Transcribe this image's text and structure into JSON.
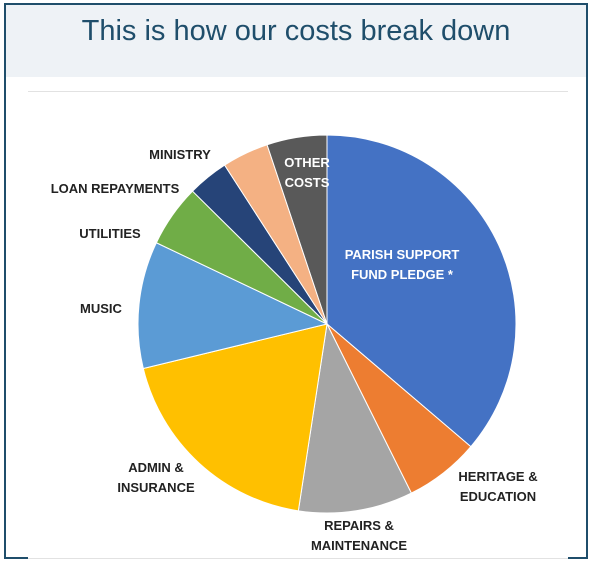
{
  "page": {
    "title": "This is how our costs break down"
  },
  "chart_data": {
    "type": "pie",
    "title": "This is how our costs break down",
    "start_angle_deg": 0,
    "direction": "clockwise",
    "legend": "none",
    "slices": [
      {
        "label_lines": [
          "PARISH SUPPORT",
          "FUND PLEDGE *"
        ],
        "value": 37.4,
        "color": "#4472c4",
        "label_inside": true
      },
      {
        "label_lines": [
          "HERITAGE &",
          "EDUCATION"
        ],
        "value": 6.6,
        "color": "#ed7d31",
        "label_inside": false
      },
      {
        "label_lines": [
          "REPAIRS &",
          "MAINTENANCE"
        ],
        "value": 10.1,
        "color": "#a5a5a5",
        "label_inside": false
      },
      {
        "label_lines": [
          "ADMIN &",
          "INSURANCE"
        ],
        "value": 19.4,
        "color": "#ffc000",
        "label_inside": false
      },
      {
        "label_lines": [
          "MUSIC"
        ],
        "value": 11.2,
        "color": "#5b9bd5",
        "label_inside": false
      },
      {
        "label_lines": [
          "UTILITIES"
        ],
        "value": 5.5,
        "color": "#70ad47",
        "label_inside": false
      },
      {
        "label_lines": [
          "LOAN REPAYMENTS"
        ],
        "value": 3.6,
        "color": "#264478",
        "label_inside": false
      },
      {
        "label_lines": [
          "MINISTRY"
        ],
        "value": 4.1,
        "color": "#f4b183",
        "label_inside": false
      },
      {
        "label_lines": [
          "OTHER",
          "COSTS"
        ],
        "value": 5.3,
        "color": "#595959",
        "label_inside": true
      }
    ]
  }
}
